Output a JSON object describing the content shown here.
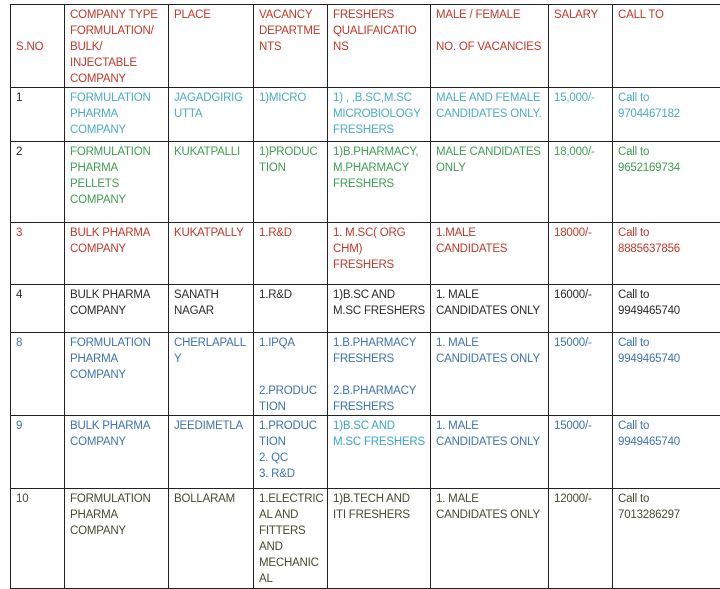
{
  "header": {
    "sno": "S.NO",
    "company_type": "COMPANY TYPE\nFORMULATION/\nBULK/\nINJECTABLE\nCOMPANY",
    "place": "PLACE",
    "vacancy": "VACANCY\nDEPARTME\nNTS",
    "freshers": "FRESHERS\nQUALIFAICATIO\nNS",
    "gender": "MALE / FEMALE\n\nNO. OF VACANCIES",
    "salary": "SALARY",
    "call": "CALL TO"
  },
  "rows": [
    {
      "color": "#4bacc6",
      "sno_color": "#222222",
      "fresh_color": "#4bacc6",
      "sno": "1",
      "company": "FORMULATION\nPHARMA\nCOMPANY",
      "place": "JAGADGIRIG\nUTTA",
      "vacancy": "1)MICRO",
      "freshers": "1) , ,B.SC,M.SC\nMICROBIOLOGY\nFRESHERS",
      "gender": "MALE AND FEMALE\nCANDIDATES ONLY.",
      "salary": "15,000/-",
      "call": "Call to\n9704467182"
    },
    {
      "color": "#3f9f4f",
      "sno_color": "#222222",
      "fresh_color": "#3f9f4f",
      "sno": "2",
      "company": "FORMULATION\nPHARMA\nPELLETS\nCOMPANY",
      "place": "KUKATPALLI",
      "vacancy": "1)PRODUC\nTION",
      "freshers": "1)B.PHARMACY,\nM.PHARMACY\nFRESHERS",
      "gender": "MALE CANDIDATES\nONLY",
      "salary": "18,000/-",
      "call": "Call to\n9652169734"
    },
    {
      "color": "#c0392b",
      "sno_color": "#c0392b",
      "fresh_color": "#c0392b",
      "sno": "3",
      "company": "BULK PHARMA\nCOMPANY",
      "place": "KUKATPALLY",
      "vacancy": "1.R&D",
      "freshers": "1. M.SC( ORG\nCHM)\n FRESHERS",
      "gender": "1.MALE\nCANDIDATES",
      "salary": "18000/-",
      "call": "Call to\n8885637856"
    },
    {
      "color": "#2b2b2b",
      "sno_color": "#2b2b2b",
      "fresh_color": "#2b2b2b",
      "sno": "4",
      "company": "BULK PHARMA\nCOMPANY",
      "place": "SANATH\nNAGAR",
      "vacancy": "1.R&D",
      "freshers": "1)B.SC  AND\nM.SC FRESHERS",
      "gender": "1. MALE\nCANDIDATES ONLY",
      "salary": "16000/-",
      "call": "Call to\n9949465740"
    },
    {
      "color": "#3d73b5",
      "sno_color": "#3d73b5",
      "fresh_color": "#3d73b5",
      "sno": "8",
      "company": "FORMULATION\nPHARMA\nCOMPANY",
      "place": "CHERLAPALL\nY",
      "vacancy": "1.IPQA\n\n\n2.PRODUC\nTION",
      "freshers": "1.B.PHARMACY\nFRESHERS\n\n2.B.PHARMACY\nFRESHERS",
      "gender": "1. MALE\nCANDIDATES ONLY",
      "salary": "15000/-",
      "call": "Call  to\n9949465740"
    },
    {
      "color": "#3d73b5",
      "sno_color": "#3d73b5",
      "fresh_color": "#3aa6c9",
      "sno": "9",
      "company": "BULK PHARMA\nCOMPANY",
      "place": "JEEDIMETLA",
      "vacancy": "1.PRODUC\nTION\n2. QC\n3. R&D",
      "freshers": "1)B.SC  AND\nM.SC FRESHERS",
      "gender": "1. MALE\nCANDIDATES ONLY",
      "salary": "15000/-",
      "call": "Call  to\n9949465740"
    },
    {
      "color": "#4a4a30",
      "sno_color": "#4a4a30",
      "fresh_color": "#4a4a30",
      "sno": "10",
      "company": "FORMULATION\nPHARMA\nCOMPANY",
      "place": "BOLLARAM",
      "vacancy": "1.ELECTRIC\nAL AND\nFITTERS\nAND\nMECHANIC\nAL",
      "freshers": "1)B.TECH  AND\nITI FRESHERS",
      "gender": "1. MALE\nCANDIDATES ONLY",
      "salary": "12000/-",
      "call": "Call  to\n7013286297"
    }
  ]
}
